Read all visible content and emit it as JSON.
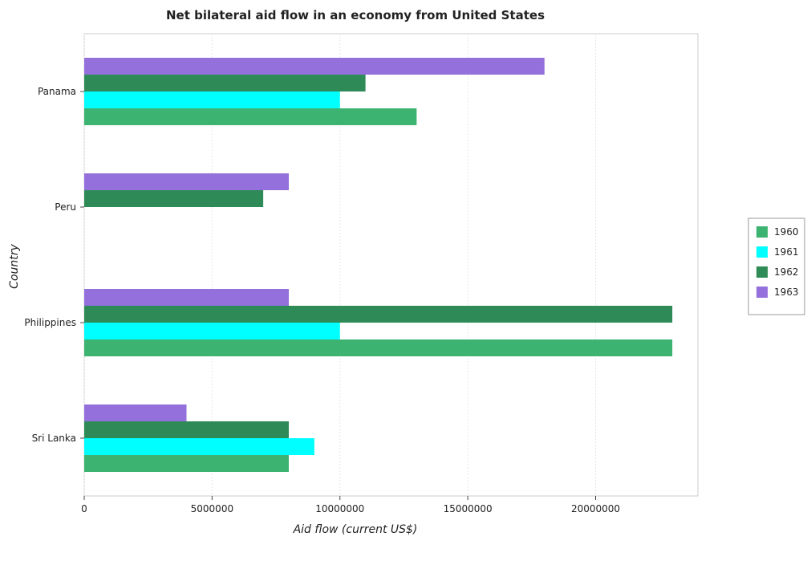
{
  "chart_data": {
    "type": "bar",
    "orientation": "horizontal",
    "title": "Net bilateral aid flow in an economy from United States",
    "xlabel": "Aid flow (current US$)",
    "ylabel": "Country",
    "categories": [
      "Panama",
      "Peru",
      "Philippines",
      "Sri Lanka"
    ],
    "series": [
      {
        "name": "1960",
        "color": "#3cb371",
        "values": [
          13000000,
          0,
          23000000,
          8000000
        ]
      },
      {
        "name": "1961",
        "color": "#00ffff",
        "values": [
          10000000,
          0,
          10000000,
          9000000
        ]
      },
      {
        "name": "1962",
        "color": "#2e8b57",
        "values": [
          11000000,
          7000000,
          23000000,
          8000000
        ]
      },
      {
        "name": "1963",
        "color": "#9370db",
        "values": [
          18000000,
          8000000,
          8000000,
          4000000
        ]
      }
    ],
    "xlim": [
      0,
      24000000
    ],
    "xticks": [
      0,
      5000000,
      10000000,
      15000000,
      20000000
    ],
    "xtick_labels": [
      "0",
      "5000000",
      "10000000",
      "15000000",
      "20000000"
    ],
    "grid": true,
    "legend_position": "right"
  }
}
